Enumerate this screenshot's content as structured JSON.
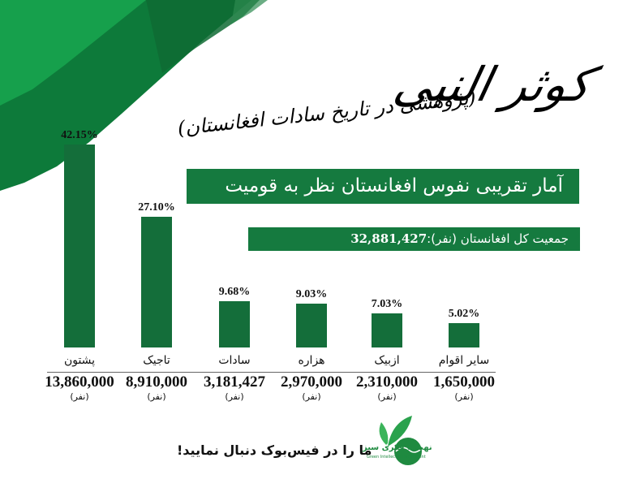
{
  "header": {
    "title": "کوثر النبی",
    "subtitle": "(پژوهشی در تاریخ سادات افغانستان)"
  },
  "banner": {
    "main": "آمار تقریبی نفوس افغانستان  نظر به قومیت",
    "total_label": "جمعیت کل  افغانستان (نفر):",
    "total_value": "32,881,427"
  },
  "colors": {
    "primary_green": "#157a3f",
    "bar_green": "#146e3a",
    "brush_light": "#0f9a4a",
    "brush_dark": "#0d6b34"
  },
  "chart_data": {
    "type": "bar",
    "title": "آمار تقریبی نفوس افغانستان نظر به قومیت",
    "subtitle": "جمعیت کل افغانستان (نفر): 32,881,427",
    "categories": [
      "پشتون",
      "تاجیک",
      "سادات",
      "هزاره",
      "ازبیک",
      "سایر اقوام"
    ],
    "series": [
      {
        "name": "percent",
        "values": [
          42.15,
          27.1,
          9.68,
          9.03,
          7.03,
          5.02
        ]
      },
      {
        "name": "population",
        "values": [
          13860000,
          8910000,
          3181427,
          2970000,
          2310000,
          1650000
        ]
      }
    ],
    "percent_labels": [
      "42.15%",
      "27.10%",
      "9.68%",
      "9.03%",
      "7.03%",
      "5.02%"
    ],
    "value_labels": [
      "13,860,000",
      "8,910,000",
      "3,181,427",
      "2,970,000",
      "2,310,000",
      "1,650,000"
    ],
    "unit_label": "(نفر)",
    "xlabel": "",
    "ylabel": "",
    "ylim": [
      0,
      45
    ],
    "grid": false,
    "legend": "none"
  },
  "footer": {
    "follow_text": "ما را در فیس‌بوک دنبال نمایید!",
    "logo_text": "نهضت فکری سبز",
    "logo_subtext": "Green Intellectual Movement"
  }
}
